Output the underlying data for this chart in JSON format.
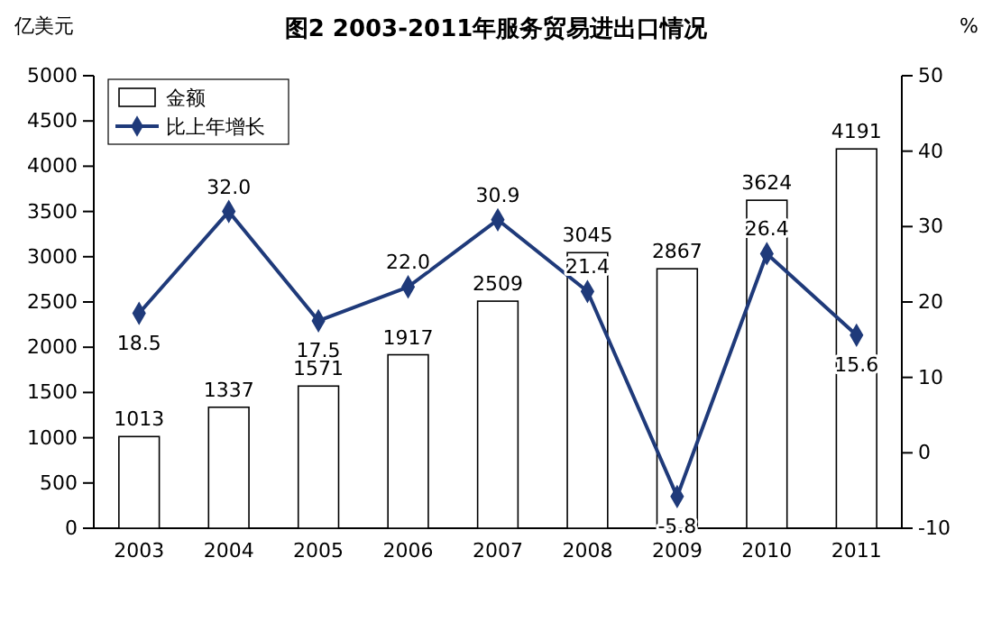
{
  "chart_data": {
    "type": "bar",
    "title": "图2 2003-2011年服务贸易进出口情况",
    "ylabel": "亿美元",
    "y2label": "%",
    "categories": [
      "2003",
      "2004",
      "2005",
      "2006",
      "2007",
      "2008",
      "2009",
      "2010",
      "2011"
    ],
    "series": [
      {
        "name": "金额",
        "color": "#ffffff",
        "values": [
          1013,
          1337,
          1571,
          1917,
          2509,
          3045,
          2867,
          3624,
          4191
        ],
        "value_labels": [
          "1013",
          "1337",
          "1571",
          "1917",
          "2509",
          "3045",
          "2867",
          "3624",
          "4191"
        ]
      },
      {
        "name": "比上年增长",
        "type": "line",
        "axis": "y2",
        "color": "#1f3a7a",
        "marker": "diamond",
        "values": [
          18.5,
          32.0,
          17.5,
          22.0,
          30.9,
          21.4,
          -5.8,
          26.4,
          15.6
        ],
        "value_labels": [
          "18.5",
          "32.0",
          "17.5",
          "22.0",
          "30.9",
          "21.4",
          "-5.8",
          "26.4",
          "15.6"
        ]
      }
    ],
    "ylim": [
      0,
      5000
    ],
    "yticks": [
      0,
      500,
      1000,
      1500,
      2000,
      2500,
      3000,
      3500,
      4000,
      4500,
      5000
    ],
    "y2lim": [
      -10,
      50
    ],
    "y2ticks": [
      -10,
      0,
      10,
      20,
      30,
      40,
      50
    ],
    "legend": "top left",
    "grid": false
  }
}
